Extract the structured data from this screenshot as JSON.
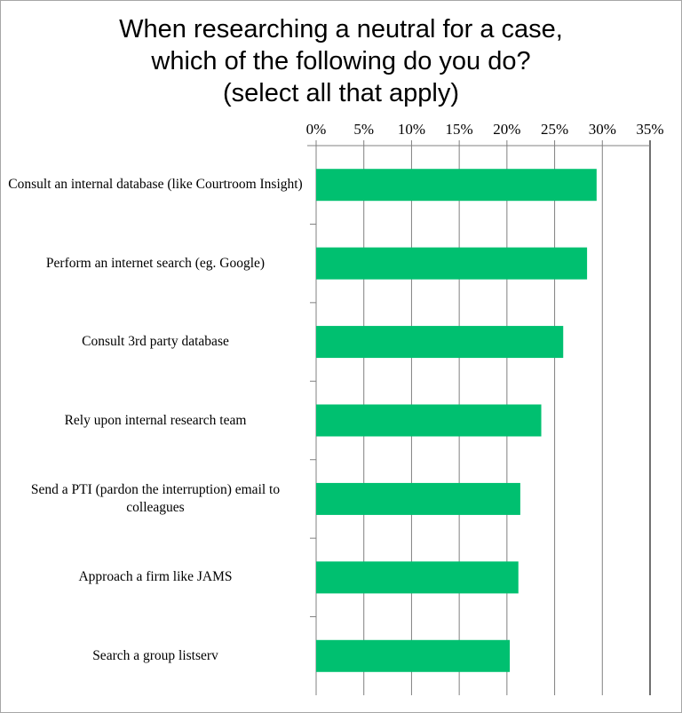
{
  "chart_data": {
    "type": "bar",
    "orientation": "horizontal",
    "title": [
      "When researching a neutral for a case,",
      "which of the following do you do?",
      "(select all that apply)"
    ],
    "categories": [
      "Consult an internal database (like Courtroom Insight)",
      "Perform an internet search (eg. Google)",
      "Consult 3rd party database",
      "Rely upon internal research team",
      "Send a PTI (pardon the interruption) email to colleagues",
      "Approach a firm like JAMS",
      "Search a group listserv"
    ],
    "values": [
      29.4,
      28.4,
      25.9,
      23.6,
      21.4,
      21.2,
      20.3
    ],
    "xlim": [
      0,
      35
    ],
    "xticks": [
      "0%",
      "5%",
      "10%",
      "15%",
      "20%",
      "25%",
      "30%",
      "35%"
    ],
    "xaxis_position": "top",
    "grid": true,
    "bar_color": "#00c070"
  }
}
